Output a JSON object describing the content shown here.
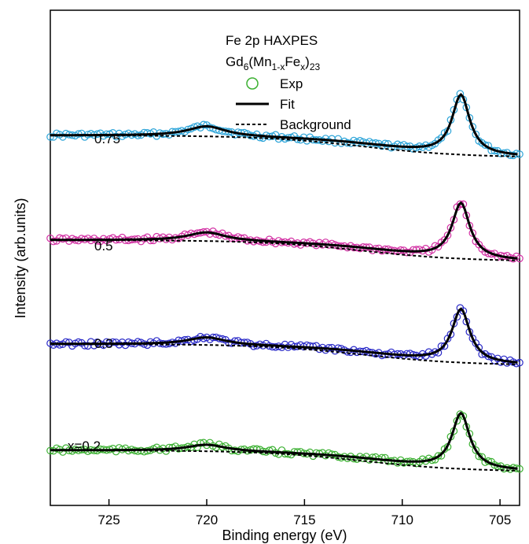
{
  "chart_data": {
    "type": "line",
    "title_line1": "Fe 2p HAXPES",
    "title_line2": {
      "base": "Gd",
      "sub1": "6",
      "mid1": "(Mn",
      "sub2": "1-x",
      "mid2": "Fe",
      "sub3": "x",
      "mid3": ")",
      "sub4": "23"
    },
    "xlabel": "Binding energy (eV)",
    "ylabel": "Intensity (arb.units)",
    "xlim": [
      728,
      704
    ],
    "x_reversed": true,
    "x_ticks": [
      725,
      720,
      715,
      710,
      705
    ],
    "y_tick_labels_shown": false,
    "grid": false,
    "legend": {
      "position": "top-center",
      "entries": [
        {
          "label": "Exp",
          "style": "open-circle"
        },
        {
          "label": "Fit",
          "style": "solid-line"
        },
        {
          "label": "Background",
          "style": "dashed-line"
        }
      ]
    },
    "series": [
      {
        "name": "0.75",
        "color": "#2aa3d8",
        "peaks": {
          "satellite_eV": 720.0,
          "main_eV": 707.0
        },
        "rel_intensity": {
          "baseline_left": 1.0,
          "satellite": 1.45,
          "main": 2.7,
          "baseline_right": 0.0
        }
      },
      {
        "name": "0.5",
        "color": "#d22fa3",
        "peaks": {
          "satellite_eV": 720.0,
          "main_eV": 707.0
        },
        "rel_intensity": {
          "baseline_left": 1.0,
          "satellite": 1.4,
          "main": 2.6,
          "baseline_right": 0.0
        }
      },
      {
        "name": "0.3",
        "color": "#2a2ac8",
        "peaks": {
          "satellite_eV": 720.0,
          "main_eV": 707.0
        },
        "rel_intensity": {
          "baseline_left": 1.0,
          "satellite": 1.35,
          "main": 2.5,
          "baseline_right": 0.0
        }
      },
      {
        "name": "x=0.2",
        "color": "#3bb031",
        "peaks": {
          "satellite_eV": 720.0,
          "main_eV": 707.0
        },
        "rel_intensity": {
          "baseline_left": 1.0,
          "satellite": 1.3,
          "main": 2.6,
          "baseline_right": 0.0
        }
      }
    ],
    "fit_color": "#000000",
    "background_color": "#000000"
  }
}
